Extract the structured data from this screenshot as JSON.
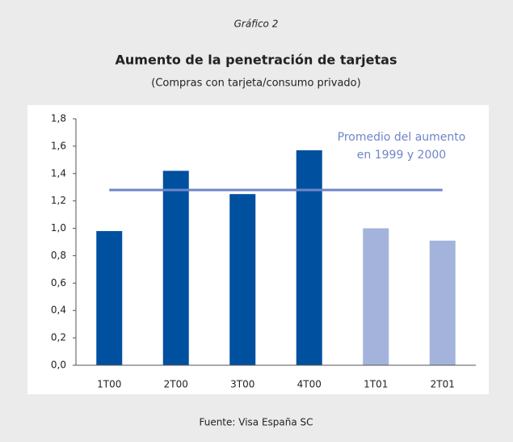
{
  "chart_data": {
    "type": "bar",
    "kicker": "Gráfico 2",
    "title": "Aumento de la penetración de tarjetas",
    "subtitle": "(Compras con tarjeta/consumo privado)",
    "source": "Fuente: Visa España SC",
    "categories": [
      "1T00",
      "2T00",
      "3T00",
      "4T00",
      "1T01",
      "2T01"
    ],
    "values": [
      0.98,
      1.42,
      1.25,
      1.57,
      1.0,
      0.91
    ],
    "colors": [
      "#0050a0",
      "#0050a0",
      "#0050a0",
      "#0050a0",
      "#a3b3db",
      "#a3b3db"
    ],
    "ylim": [
      0,
      1.8
    ],
    "yticks": [
      {
        "value": 0,
        "label": "0,0"
      },
      {
        "value": 0.2,
        "label": "0,2"
      },
      {
        "value": 0.4,
        "label": "0,4"
      },
      {
        "value": 0.6,
        "label": "0,6"
      },
      {
        "value": 0.8,
        "label": "0,8"
      },
      {
        "value": 1.0,
        "label": "1,0"
      },
      {
        "value": 1.2,
        "label": "1,2"
      },
      {
        "value": 1.4,
        "label": "1,4"
      },
      {
        "value": 1.6,
        "label": "1,6"
      },
      {
        "value": 1.8,
        "label": "1,8"
      }
    ],
    "reference_line": {
      "value": 1.28,
      "color": "#6f86c8",
      "label": [
        "Promedio del aumento",
        "en 1999 y 2000"
      ]
    }
  }
}
